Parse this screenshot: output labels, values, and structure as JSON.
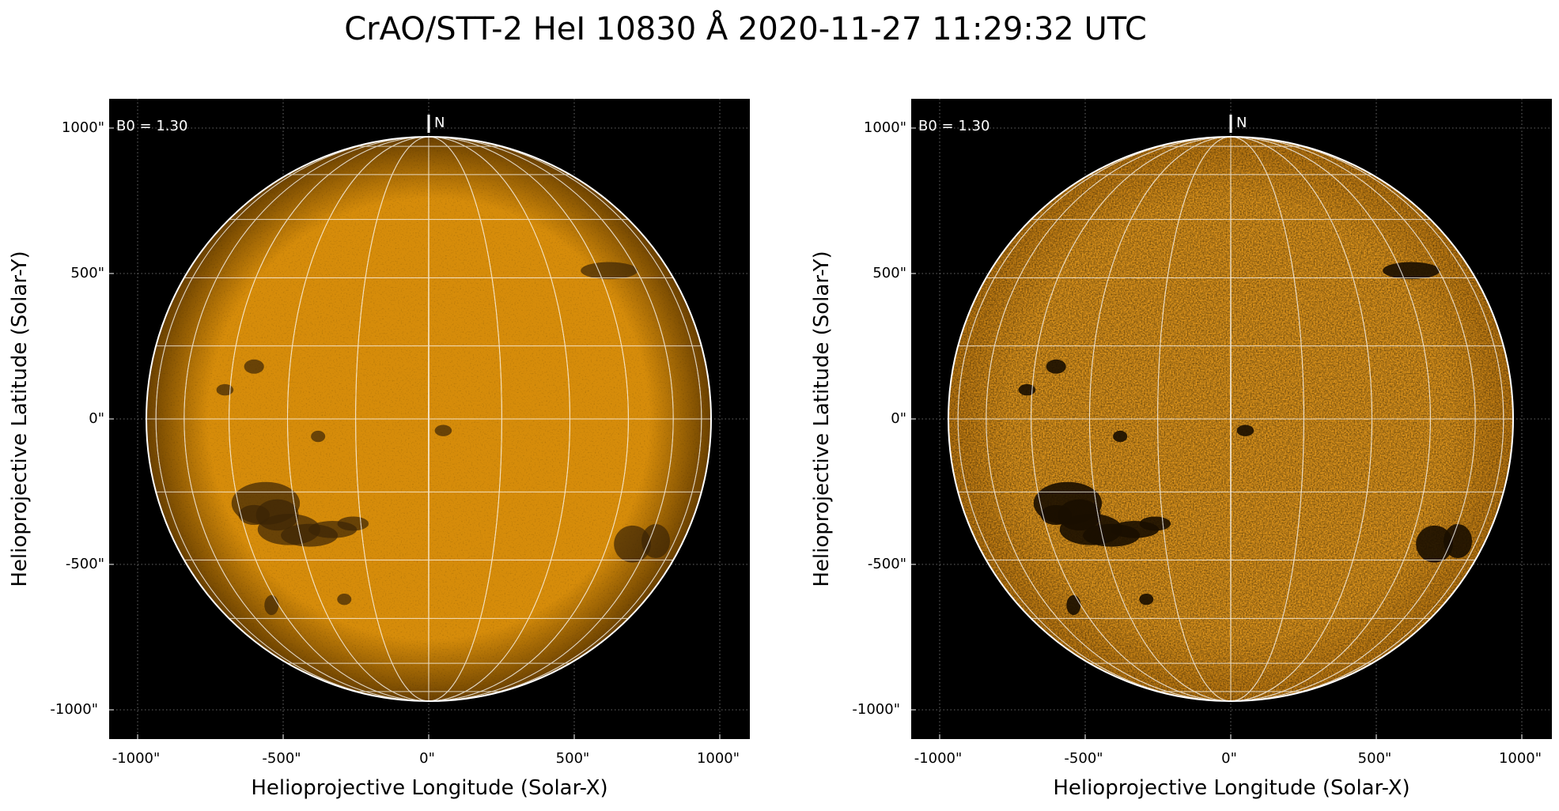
{
  "title": "CrAO/STT-2 HeI 10830 Å 2020-11-27 11:29:32 UTC",
  "panels": [
    {
      "id": "left",
      "annotation": "B0 = 1.30",
      "north_label": "N",
      "xlabel": "Helioprojective Longitude (Solar-X)",
      "ylabel": "Helioprojective Latitude (Solar-Y)",
      "xticks": [
        "-1000\"",
        "-500\"",
        "0\"",
        "500\"",
        "1000\""
      ],
      "yticks": [
        "1000\"",
        "500\"",
        "0\"",
        "-500\"",
        "-1000\""
      ],
      "disk_color": "#d68c0a",
      "limb_color": "#6b4100",
      "contrast": "low"
    },
    {
      "id": "right",
      "annotation": "B0 = 1.30",
      "north_label": "N",
      "xlabel": "Helioprojective Longitude (Solar-X)",
      "ylabel": "Helioprojective Latitude (Solar-Y)",
      "xticks": [
        "-1000\"",
        "-500\"",
        "0\"",
        "500\"",
        "1000\""
      ],
      "yticks": [
        "1000\"",
        "500\"",
        "0\"",
        "-500\"",
        "-1000\""
      ],
      "disk_color": "#e0961c",
      "limb_color": "#c07a10",
      "contrast": "high"
    }
  ],
  "colors": {
    "background": "#000000",
    "grid": "#ffffff",
    "text": "#000000"
  }
}
